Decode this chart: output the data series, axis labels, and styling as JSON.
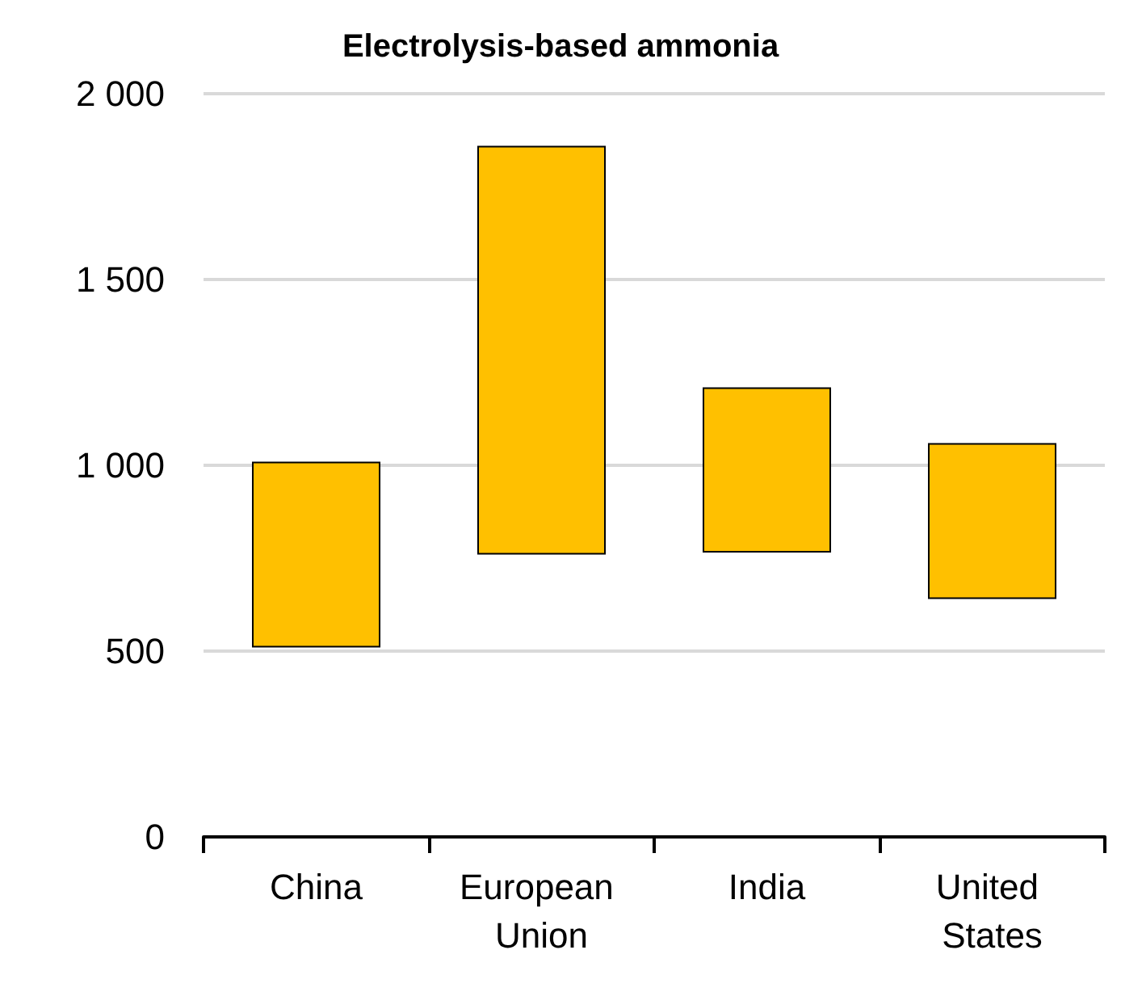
{
  "chart_data": {
    "type": "bar",
    "title": "Electrolysis-based ammonia",
    "categories": [
      "China",
      "European Union",
      "India",
      "United States"
    ],
    "base": [
      510,
      760,
      765,
      640
    ],
    "values": [
      500,
      1100,
      445,
      420
    ],
    "color": "#ffc000",
    "ylim": [
      0,
      2000
    ],
    "yticks": [
      0,
      500,
      {
        "value": 1000,
        "label": "1 000"
      },
      {
        "value": 1500,
        "label": "1 500"
      },
      {
        "value": 2000,
        "label": "2 000"
      }
    ],
    "grid": "y"
  }
}
